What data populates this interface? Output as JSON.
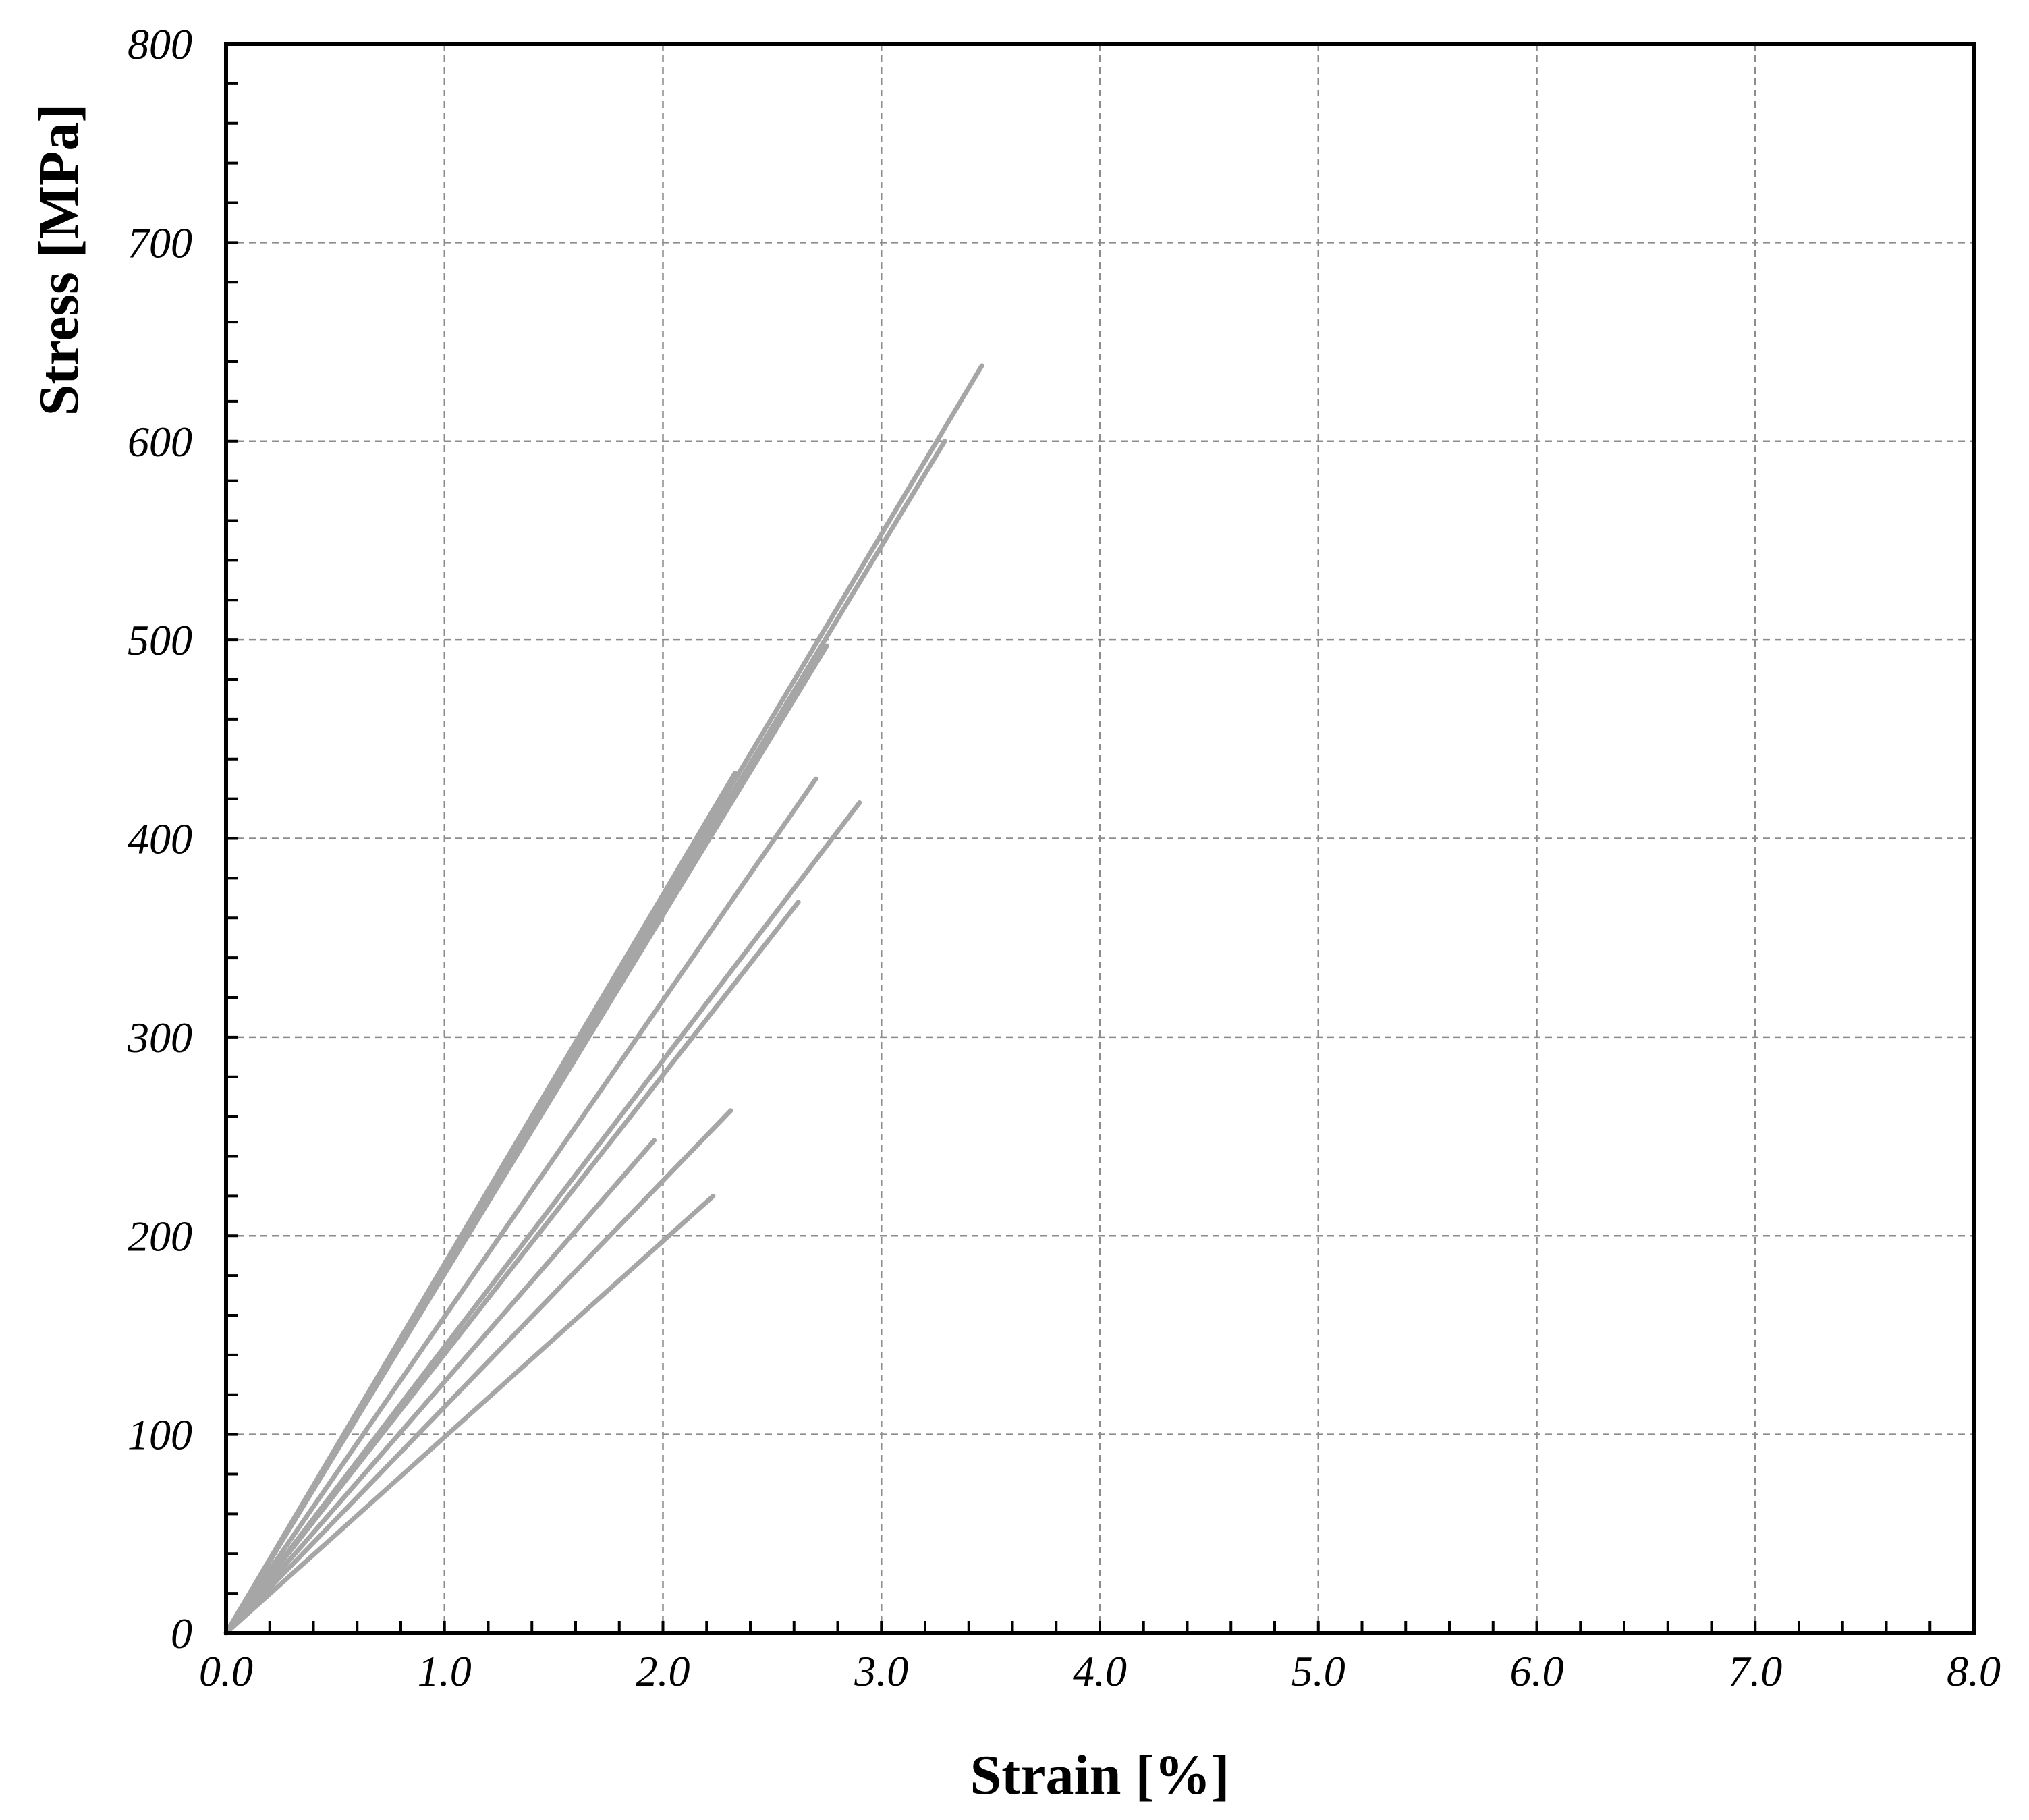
{
  "chart_data": {
    "type": "line",
    "title": "",
    "xlabel": "Strain [%]",
    "ylabel": "Stress [MPa]",
    "xlim": [
      0,
      8
    ],
    "ylim": [
      0,
      800
    ],
    "x_ticks": [
      "0.0",
      "1.0",
      "2.0",
      "3.0",
      "4.0",
      "5.0",
      "6.0",
      "7.0",
      "8.0"
    ],
    "y_ticks": [
      "0",
      "100",
      "200",
      "300",
      "400",
      "500",
      "600",
      "700",
      "800"
    ],
    "x_minor_step": 0.2,
    "y_minor_step": 20,
    "grid": true,
    "grid_style": "dashed",
    "legend": "none",
    "line_color": "#a6a6a6",
    "series": [
      {
        "x": [
          0,
          3.46
        ],
        "y": [
          0,
          638
        ]
      },
      {
        "x": [
          0,
          3.29
        ],
        "y": [
          0,
          600
        ]
      },
      {
        "x": [
          0,
          2.75
        ],
        "y": [
          0,
          497
        ]
      },
      {
        "x": [
          0,
          2.33
        ],
        "y": [
          0,
          433
        ]
      },
      {
        "x": [
          0,
          2.3
        ],
        "y": [
          0,
          422
        ]
      },
      {
        "x": [
          0,
          2.7
        ],
        "y": [
          0,
          430
        ]
      },
      {
        "x": [
          0,
          2.9
        ],
        "y": [
          0,
          418
        ]
      },
      {
        "x": [
          0,
          2.62
        ],
        "y": [
          0,
          368
        ]
      },
      {
        "x": [
          0,
          2.31
        ],
        "y": [
          0,
          263
        ]
      },
      {
        "x": [
          0,
          1.96
        ],
        "y": [
          0,
          248
        ]
      },
      {
        "x": [
          0,
          2.23
        ],
        "y": [
          0,
          220
        ]
      }
    ]
  }
}
